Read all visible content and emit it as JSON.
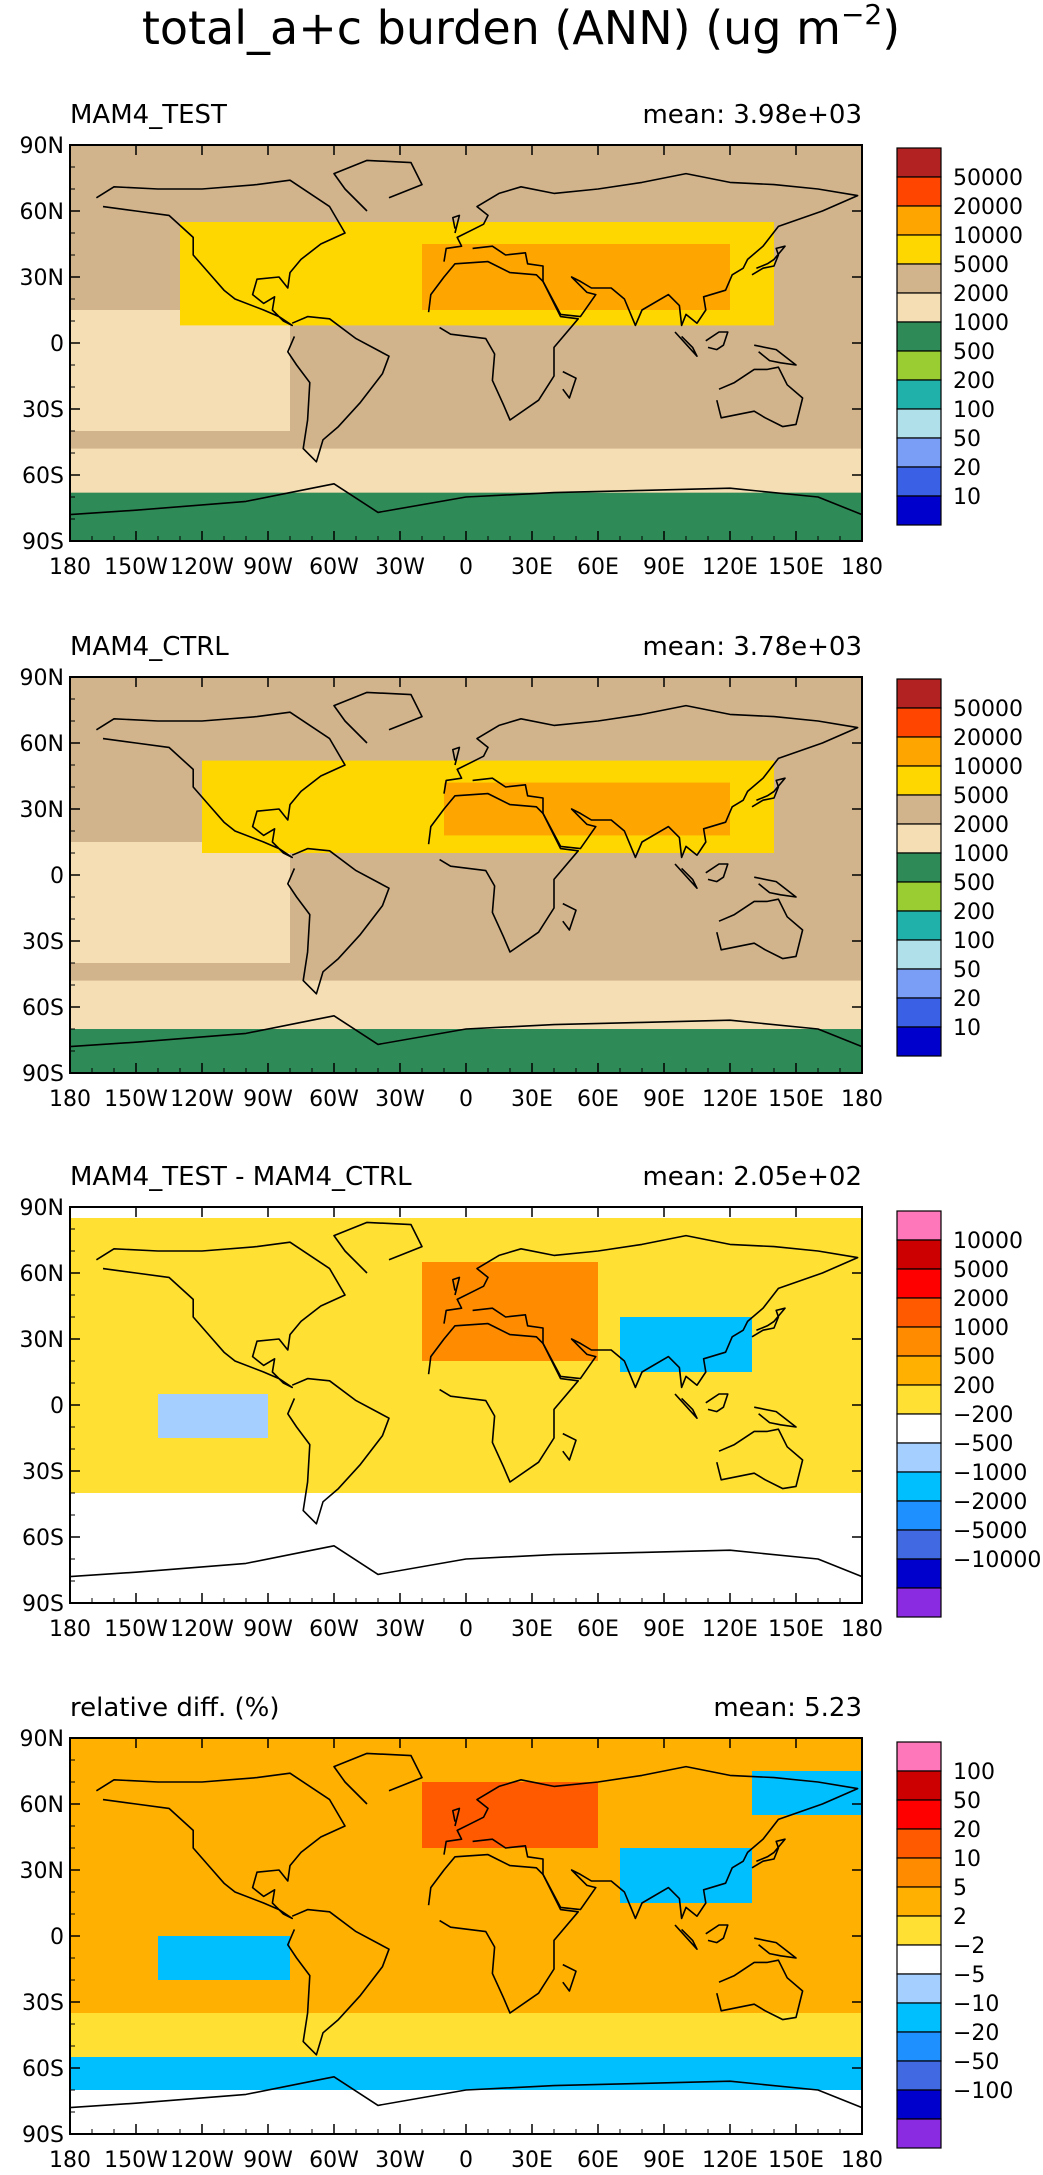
{
  "figure": {
    "title": "total_a+c burden (ANN) (ug m",
    "title_exp": "−2",
    "title_close": ")"
  },
  "colors": {
    "burden": [
      "#0000cd",
      "#3a61e5",
      "#7a9ef5",
      "#b0e1ea",
      "#20b2aa",
      "#9acd32",
      "#2e8b57",
      "#f5deb3",
      "#d2b48c",
      "#ffd700",
      "#ffa500",
      "#ff4500",
      "#b22222"
    ],
    "diff": [
      "#8a2be2",
      "#0000cd",
      "#4169e1",
      "#1e90ff",
      "#00bfff",
      "#a4cfff",
      "#ffffff",
      "#ffe033",
      "#ffb000",
      "#ff8c00",
      "#ff5a00",
      "#ff0000",
      "#cc0000",
      "#ff77bb"
    ]
  },
  "chart_data": [
    {
      "type": "heatmap",
      "title": "MAM4_TEST",
      "stat": "mean:  3.98e+03",
      "x_ticks": [
        "180",
        "150W",
        "120W",
        "90W",
        "60W",
        "30W",
        "0",
        "30E",
        "60E",
        "90E",
        "120E",
        "150E",
        "180"
      ],
      "y_ticks": [
        "90N",
        "60N",
        "30N",
        "0",
        "30S",
        "60S",
        "90S"
      ],
      "xlim": [
        -180,
        180
      ],
      "ylim": [
        -90,
        90
      ],
      "colorbar_labels": [
        "50000",
        "20000",
        "10000",
        "5000",
        "2000",
        "1000",
        "500",
        "200",
        "100",
        "50",
        "20",
        "10"
      ],
      "palette": "burden",
      "regions": [
        {
          "lon": [
            -180,
            180
          ],
          "lat": [
            -90,
            90
          ],
          "value": 2000
        },
        {
          "lon": [
            -180,
            180
          ],
          "lat": [
            -90,
            -68
          ],
          "value": 500
        },
        {
          "lon": [
            -180,
            180
          ],
          "lat": [
            -68,
            -48
          ],
          "value": 1000
        },
        {
          "lon": [
            -180,
            -80
          ],
          "lat": [
            -40,
            15
          ],
          "value": 1000
        },
        {
          "lon": [
            -130,
            140
          ],
          "lat": [
            8,
            55
          ],
          "value": 5000
        },
        {
          "lon": [
            -20,
            120
          ],
          "lat": [
            15,
            45
          ],
          "value": 10000
        }
      ]
    },
    {
      "type": "heatmap",
      "title": "MAM4_CTRL",
      "stat": "mean:  3.78e+03",
      "x_ticks": [
        "180",
        "150W",
        "120W",
        "90W",
        "60W",
        "30W",
        "0",
        "30E",
        "60E",
        "90E",
        "120E",
        "150E",
        "180"
      ],
      "y_ticks": [
        "90N",
        "60N",
        "30N",
        "0",
        "30S",
        "60S",
        "90S"
      ],
      "xlim": [
        -180,
        180
      ],
      "ylim": [
        -90,
        90
      ],
      "colorbar_labels": [
        "50000",
        "20000",
        "10000",
        "5000",
        "2000",
        "1000",
        "500",
        "200",
        "100",
        "50",
        "20",
        "10"
      ],
      "palette": "burden",
      "regions": [
        {
          "lon": [
            -180,
            180
          ],
          "lat": [
            -90,
            90
          ],
          "value": 2000
        },
        {
          "lon": [
            -180,
            180
          ],
          "lat": [
            -90,
            -70
          ],
          "value": 500
        },
        {
          "lon": [
            -180,
            180
          ],
          "lat": [
            -70,
            -48
          ],
          "value": 1000
        },
        {
          "lon": [
            -180,
            -80
          ],
          "lat": [
            -40,
            15
          ],
          "value": 1000
        },
        {
          "lon": [
            -120,
            140
          ],
          "lat": [
            10,
            52
          ],
          "value": 5000
        },
        {
          "lon": [
            -10,
            120
          ],
          "lat": [
            18,
            42
          ],
          "value": 10000
        }
      ]
    },
    {
      "type": "heatmap",
      "title": "MAM4_TEST - MAM4_CTRL",
      "stat": "mean:  2.05e+02",
      "x_ticks": [
        "180",
        "150W",
        "120W",
        "90W",
        "60W",
        "30W",
        "0",
        "30E",
        "60E",
        "90E",
        "120E",
        "150E",
        "180"
      ],
      "y_ticks": [
        "90N",
        "60N",
        "30N",
        "0",
        "30S",
        "60S",
        "90S"
      ],
      "xlim": [
        -180,
        180
      ],
      "ylim": [
        -90,
        90
      ],
      "colorbar_labels": [
        "10000",
        "5000",
        "2000",
        "1000",
        "500",
        "200",
        "−200",
        "−500",
        "−1000",
        "−2000",
        "−5000",
        "−10000"
      ],
      "palette": "diff",
      "regions": [
        {
          "lon": [
            -180,
            180
          ],
          "lat": [
            -90,
            90
          ],
          "value": 0
        },
        {
          "lon": [
            -180,
            180
          ],
          "lat": [
            -40,
            85
          ],
          "value": 300
        },
        {
          "lon": [
            -20,
            60
          ],
          "lat": [
            20,
            65
          ],
          "value": 1000
        },
        {
          "lon": [
            70,
            130
          ],
          "lat": [
            15,
            40
          ],
          "value": -600
        },
        {
          "lon": [
            -140,
            -90
          ],
          "lat": [
            -15,
            5
          ],
          "value": -300
        }
      ]
    },
    {
      "type": "heatmap",
      "title": "relative diff. (%)",
      "stat": "mean:   5.23",
      "x_ticks": [
        "180",
        "150W",
        "120W",
        "90W",
        "60W",
        "30W",
        "0",
        "30E",
        "60E",
        "90E",
        "120E",
        "150E",
        "180"
      ],
      "y_ticks": [
        "90N",
        "60N",
        "30N",
        "0",
        "30S",
        "60S",
        "90S"
      ],
      "xlim": [
        -180,
        180
      ],
      "ylim": [
        -90,
        90
      ],
      "colorbar_labels": [
        "100",
        "50",
        "20",
        "10",
        "5",
        "2",
        "−2",
        "−5",
        "−10",
        "−20",
        "−50",
        "−100"
      ],
      "palette": "diff",
      "regions": [
        {
          "lon": [
            -180,
            180
          ],
          "lat": [
            -90,
            90
          ],
          "value": 8
        },
        {
          "lon": [
            -180,
            180
          ],
          "lat": [
            -90,
            -70
          ],
          "value": 0
        },
        {
          "lon": [
            -180,
            180
          ],
          "lat": [
            -70,
            -55
          ],
          "value": -6
        },
        {
          "lon": [
            -180,
            180
          ],
          "lat": [
            -55,
            -35
          ],
          "value": 3
        },
        {
          "lon": [
            -20,
            60
          ],
          "lat": [
            40,
            70
          ],
          "value": 30
        },
        {
          "lon": [
            -140,
            -80
          ],
          "lat": [
            -20,
            0
          ],
          "value": -6
        },
        {
          "lon": [
            70,
            130
          ],
          "lat": [
            15,
            40
          ],
          "value": -8
        },
        {
          "lon": [
            130,
            180
          ],
          "lat": [
            55,
            75
          ],
          "value": -6
        }
      ]
    }
  ]
}
